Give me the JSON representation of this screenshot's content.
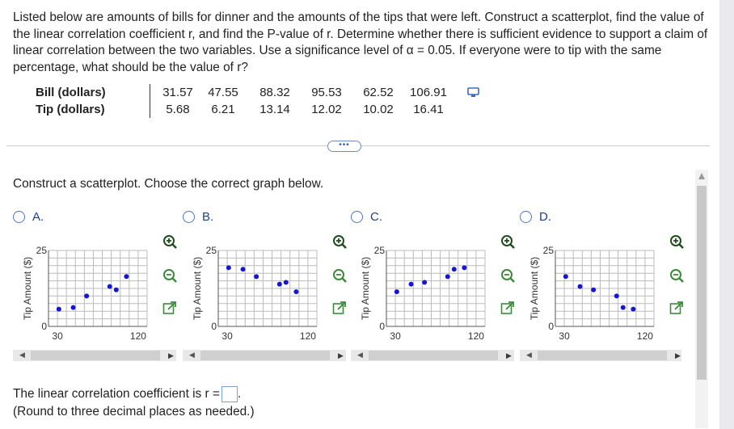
{
  "question": "Listed below are amounts of bills for dinner and the amounts of the tips that were left. Construct a scatterplot, find the value of the linear correlation coefficient r, and find the P-value of r. Determine whether there is sufficient evidence to support a claim of linear correlation between the two variables. Use a significance level of α = 0.05. If everyone were to tip with the same percentage, what should be the value of r?",
  "table": {
    "row1_label": "Bill (dollars)",
    "row2_label": "Tip (dollars)",
    "bills": [
      "31.57",
      "47.55",
      "88.32",
      "95.53",
      "62.52",
      "106.91"
    ],
    "tips": [
      "5.68",
      "6.21",
      "13.14",
      "12.02",
      "10.02",
      "16.41"
    ]
  },
  "more_button": "•••",
  "prompt": "Construct a scatterplot. Choose the correct graph below.",
  "options": [
    {
      "letter": "A.",
      "ylabel": "Tip Amount ($)",
      "ytick_top": "25",
      "ytick_bottom": "0",
      "xtick_left": "30",
      "xtick_right": "120"
    },
    {
      "letter": "B.",
      "ylabel": "Tip Amount ($)",
      "ytick_top": "25",
      "ytick_bottom": "0",
      "xtick_left": "30",
      "xtick_right": "120"
    },
    {
      "letter": "C.",
      "ylabel": "Tip Amount ($)",
      "ytick_top": "25",
      "ytick_bottom": "0",
      "xtick_left": "30",
      "xtick_right": "120"
    },
    {
      "letter": "D.",
      "ylabel": "Tip Amount ($)",
      "ytick_top": "25",
      "ytick_bottom": "0",
      "xtick_left": "30",
      "xtick_right": "120"
    }
  ],
  "chart_data": [
    {
      "type": "scatter",
      "ylabel": "Tip Amount ($)",
      "xlim": [
        20,
        130
      ],
      "ylim": [
        0,
        25
      ],
      "x": [
        31.57,
        47.55,
        88.32,
        95.53,
        62.52,
        106.91
      ],
      "y": [
        5.68,
        6.21,
        13.14,
        12.02,
        10.02,
        16.41
      ]
    },
    {
      "type": "scatter",
      "ylabel": "Tip Amount ($)",
      "xlim": [
        20,
        130
      ],
      "ylim": [
        0,
        25
      ],
      "x": [
        31.57,
        47.55,
        62.52,
        88.32,
        95.53,
        106.91
      ],
      "y": [
        19.3,
        18.8,
        16.4,
        13.9,
        14.5,
        11.4
      ]
    },
    {
      "type": "scatter",
      "ylabel": "Tip Amount ($)",
      "xlim": [
        20,
        130
      ],
      "ylim": [
        0,
        25
      ],
      "x": [
        31.57,
        47.55,
        62.52,
        88.32,
        95.53,
        106.91
      ],
      "y": [
        11.4,
        13.9,
        14.5,
        16.4,
        18.8,
        19.3
      ]
    },
    {
      "type": "scatter",
      "ylabel": "Tip Amount ($)",
      "xlim": [
        20,
        130
      ],
      "ylim": [
        0,
        25
      ],
      "x": [
        31.57,
        47.55,
        62.52,
        88.32,
        95.53,
        106.91
      ],
      "y": [
        16.41,
        13.14,
        12.02,
        10.02,
        6.21,
        5.68
      ]
    }
  ],
  "result_text": "The linear correlation coefficient is r =",
  "result_period": ".",
  "hint": "(Round to three decimal places as needed.)",
  "colors": {
    "point": "#1515d6",
    "grid": "#bbbbbb",
    "radio": "#4a76c8",
    "letter": "#1c3f8c"
  }
}
